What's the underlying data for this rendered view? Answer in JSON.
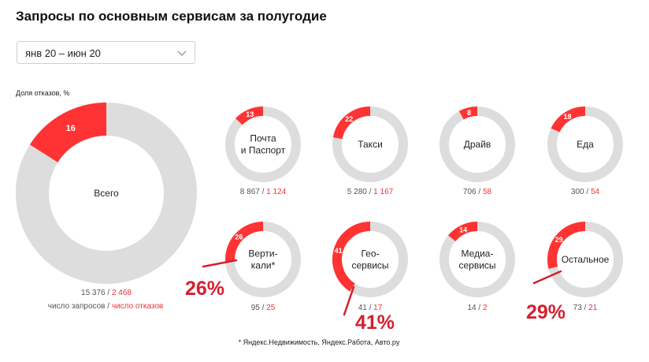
{
  "title": "Запросы по основным сервисам за полугодие",
  "period_selector": {
    "value": "янв 20 – июн 20"
  },
  "colors": {
    "accent": "#ff3333",
    "ring": "#dddddd",
    "red_text": "#e8343a",
    "annotation": "#d42030"
  },
  "chart_data": {
    "type": "donut",
    "ylabel": "Доля отказов, %",
    "legend_total": "число запросов",
    "legend_sep": " / ",
    "legend_fail": "число отказов",
    "footnote": "* Яндекс.Недвижимость, Яндекс.Работа, Авто.ру",
    "services": [
      {
        "name": [
          "Всего"
        ],
        "percent": 16,
        "total": "15 376",
        "fails": "2 468",
        "main": true
      },
      {
        "name": [
          "Почта",
          "и Паспорт"
        ],
        "percent": 13,
        "total": "8 867",
        "fails": "1 124"
      },
      {
        "name": [
          "Такси"
        ],
        "percent": 22,
        "total": "5 280",
        "fails": "1 167"
      },
      {
        "name": [
          "Драйв"
        ],
        "percent": 8,
        "total": "706",
        "fails": "58"
      },
      {
        "name": [
          "Еда"
        ],
        "percent": 18,
        "total": "300",
        "fails": "54"
      },
      {
        "name": [
          "Верти-",
          "кали*"
        ],
        "percent": 26,
        "total": "95",
        "fails": "25"
      },
      {
        "name": [
          "Гео-",
          "сервисы"
        ],
        "percent": 41,
        "total": "41",
        "fails": "17"
      },
      {
        "name": [
          "Медиа-",
          "сервисы"
        ],
        "percent": 14,
        "total": "14",
        "fails": "2"
      },
      {
        "name": [
          "Остальное"
        ],
        "percent": 29,
        "total": "73",
        "fails": "21"
      }
    ],
    "annotations": [
      {
        "text": "26%",
        "service": "Верти-кали*"
      },
      {
        "text": "41%",
        "service": "Гео-сервисы"
      },
      {
        "text": "29%",
        "service": "Остальное"
      }
    ]
  }
}
